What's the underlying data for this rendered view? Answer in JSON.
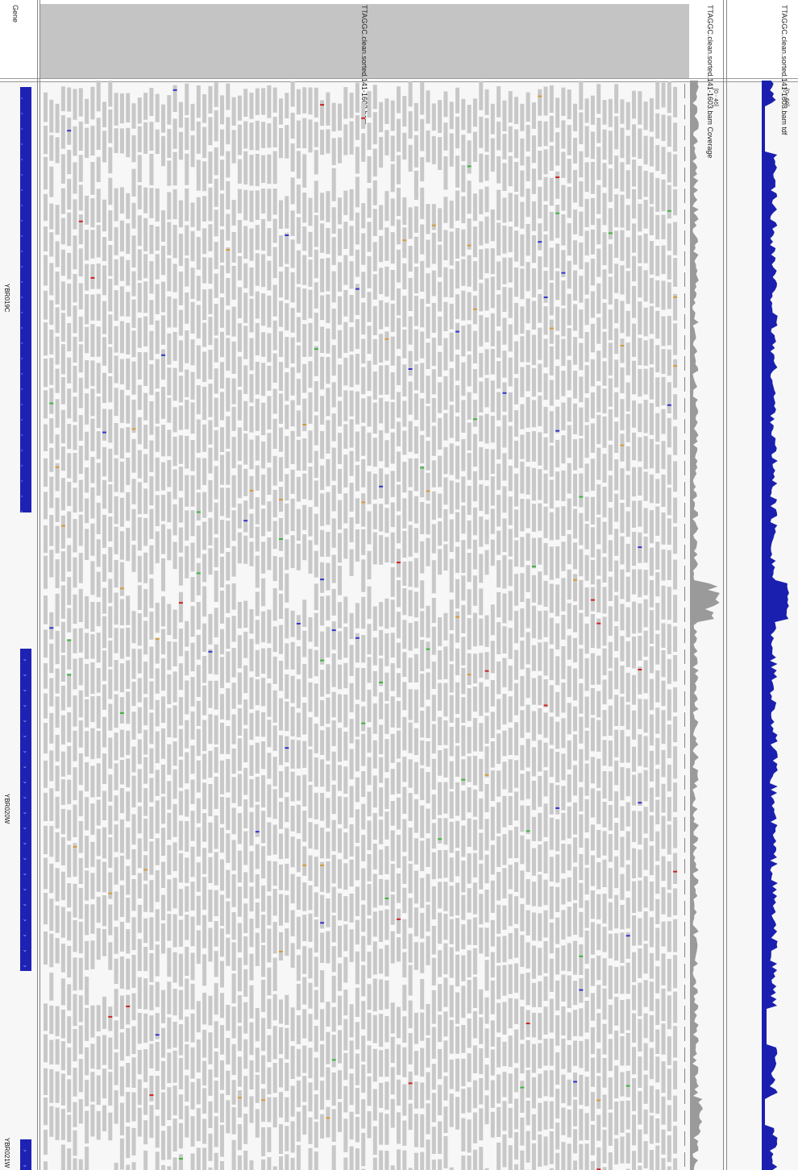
{
  "tracks": {
    "gene_track_label": "Gene",
    "alignment_track_label": "TTAGGC.clean.sorted.141-1603.bam",
    "coverage_track_label": "TTAGGC.clean.sorted.141-1603.bam Coverage",
    "bigwig_track_label": "TTAGGC.clean.sorted.141-1603.bam tdf",
    "coverage_range": "[0 - 46]",
    "bigwig_range": "[0 - 50]"
  },
  "genes": [
    {
      "name": "YBR019C",
      "strand": "<",
      "start": 108,
      "end": 636
    },
    {
      "name": "YBR020W",
      "strand": ">",
      "start": 805,
      "end": 1205
    },
    {
      "name": "YBR021W",
      "strand": ">",
      "start": 1414,
      "end": 1452
    }
  ],
  "colors": {
    "gene": "#1e22b4",
    "read": "#c8c8c8",
    "coverage": "#9a9a9a",
    "bigwig": "#1a1fb0",
    "mismatch_A": "#3bb33b",
    "mismatch_C": "#3333cc",
    "mismatch_G": "#d49a3a",
    "mismatch_T": "#cc2222"
  }
}
